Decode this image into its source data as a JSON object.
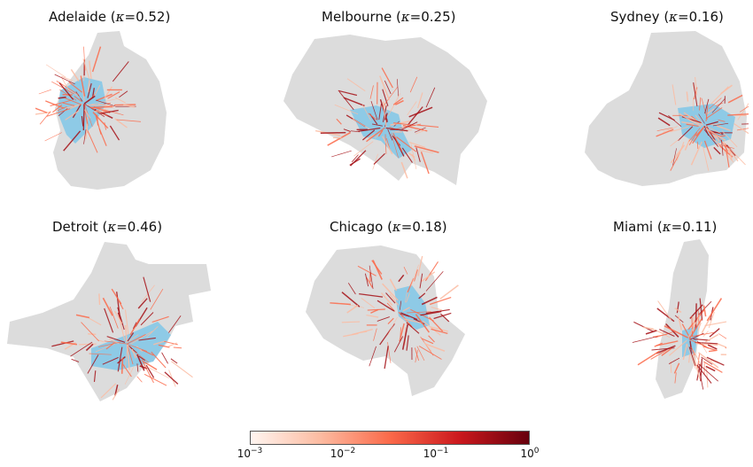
{
  "panels": [
    {
      "city": "Adelaide",
      "kappa": "0.52"
    },
    {
      "city": "Melbourne",
      "kappa": "0.25"
    },
    {
      "city": "Sydney",
      "kappa": "0.16"
    },
    {
      "city": "Detroit",
      "kappa": "0.46"
    },
    {
      "city": "Chicago",
      "kappa": "0.18"
    },
    {
      "city": "Miami",
      "kappa": "0.11"
    }
  ],
  "kappa_symbol": "κ",
  "colorbar": {
    "ticks": [
      {
        "base": "10",
        "exp": "−3"
      },
      {
        "base": "10",
        "exp": "−2"
      },
      {
        "base": "10",
        "exp": "−1"
      },
      {
        "base": "10",
        "exp": "0"
      }
    ]
  },
  "colors": {
    "region": "#dcdcdc",
    "core": "#8ecae6",
    "edge_low": "#fcbba1",
    "edge_mid": "#fb6a4a",
    "edge_high": "#a50f15"
  }
}
